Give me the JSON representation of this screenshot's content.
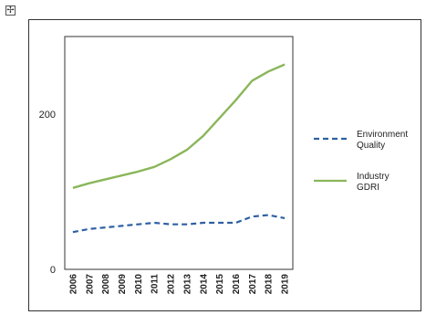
{
  "handle": {
    "icon": "move-cross-icon",
    "glyph": "✢"
  },
  "chart_data": {
    "type": "line",
    "title": "",
    "xlabel": "",
    "ylabel": "",
    "x": [
      "2006",
      "2007",
      "2008",
      "2009",
      "2010",
      "2011",
      "2012",
      "2013",
      "2014",
      "2015",
      "2016",
      "2017",
      "2018",
      "2019"
    ],
    "ylim": [
      0,
      300
    ],
    "yticks": [
      {
        "value": 0,
        "label": "0"
      },
      {
        "value": 200,
        "label": "200"
      }
    ],
    "grid": false,
    "legend_position": "right",
    "series": [
      {
        "name_lines": [
          "Environment",
          "Quality"
        ],
        "style": "dashed",
        "color": "#2e5fa3",
        "values": [
          48,
          52,
          54,
          56,
          58,
          60,
          58,
          58,
          60,
          60,
          60,
          68,
          70,
          66
        ]
      },
      {
        "name_lines": [
          "Industry",
          "GDRI"
        ],
        "style": "solid",
        "color": "#8ab65a",
        "values": [
          105,
          111,
          116,
          121,
          126,
          132,
          142,
          154,
          172,
          195,
          218,
          243,
          255,
          264
        ]
      }
    ]
  }
}
